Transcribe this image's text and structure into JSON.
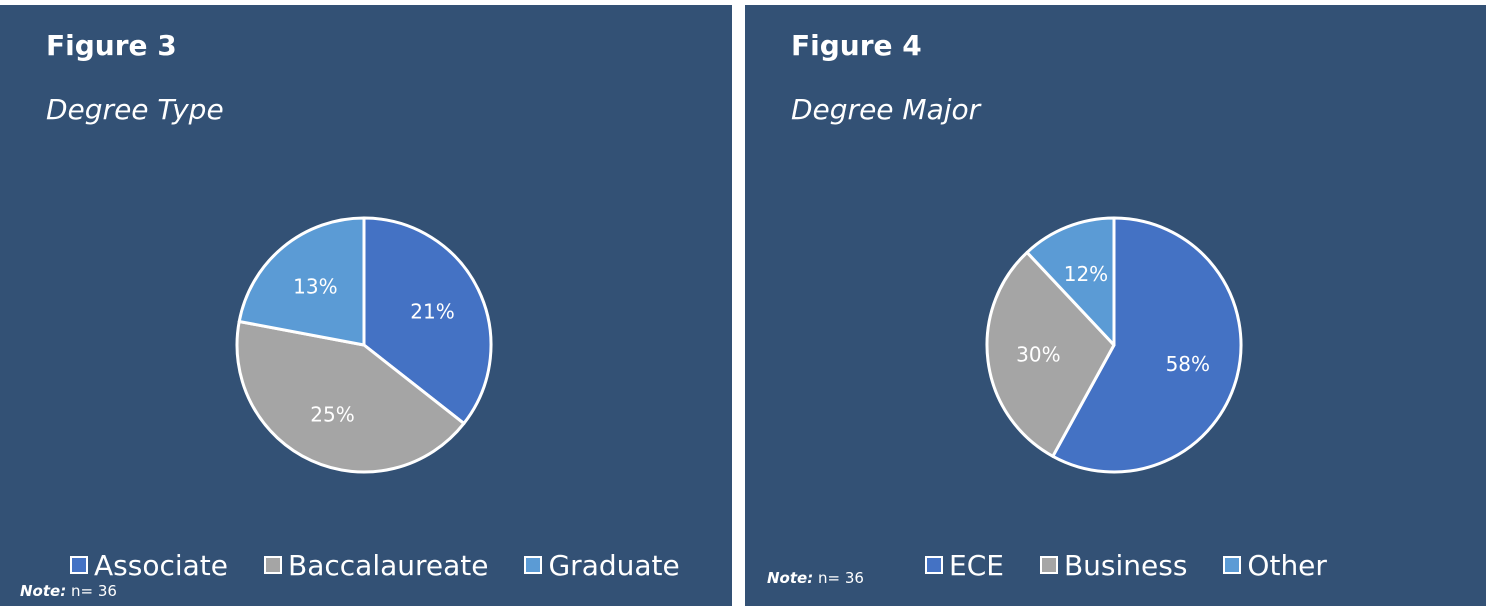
{
  "colors": {
    "background": "#335175",
    "panel_border": "#ffffff"
  },
  "chart_data": [
    {
      "type": "pie",
      "title": "Figure 3",
      "subtitle": "Degree Type",
      "categories": [
        "Associate",
        "Baccalaureate",
        "Graduate"
      ],
      "values": [
        21,
        25,
        13
      ],
      "data_labels": [
        "21%",
        "25%",
        "13%"
      ],
      "colors": [
        "#4472C4",
        "#A5A5A5",
        "#5B9BD5"
      ],
      "legend": "bottom",
      "note": {
        "label": "Note:",
        "text": "n= 36"
      }
    },
    {
      "type": "pie",
      "title": "Figure 4",
      "subtitle": "Degree Major",
      "categories": [
        "ECE",
        "Business",
        "Other"
      ],
      "values": [
        58,
        30,
        12
      ],
      "data_labels": [
        "58%",
        "30%",
        "12%"
      ],
      "colors": [
        "#4472C4",
        "#A5A5A5",
        "#5B9BD5"
      ],
      "legend": "bottom",
      "note": {
        "label": "Note:",
        "text": "n= 36"
      }
    }
  ]
}
